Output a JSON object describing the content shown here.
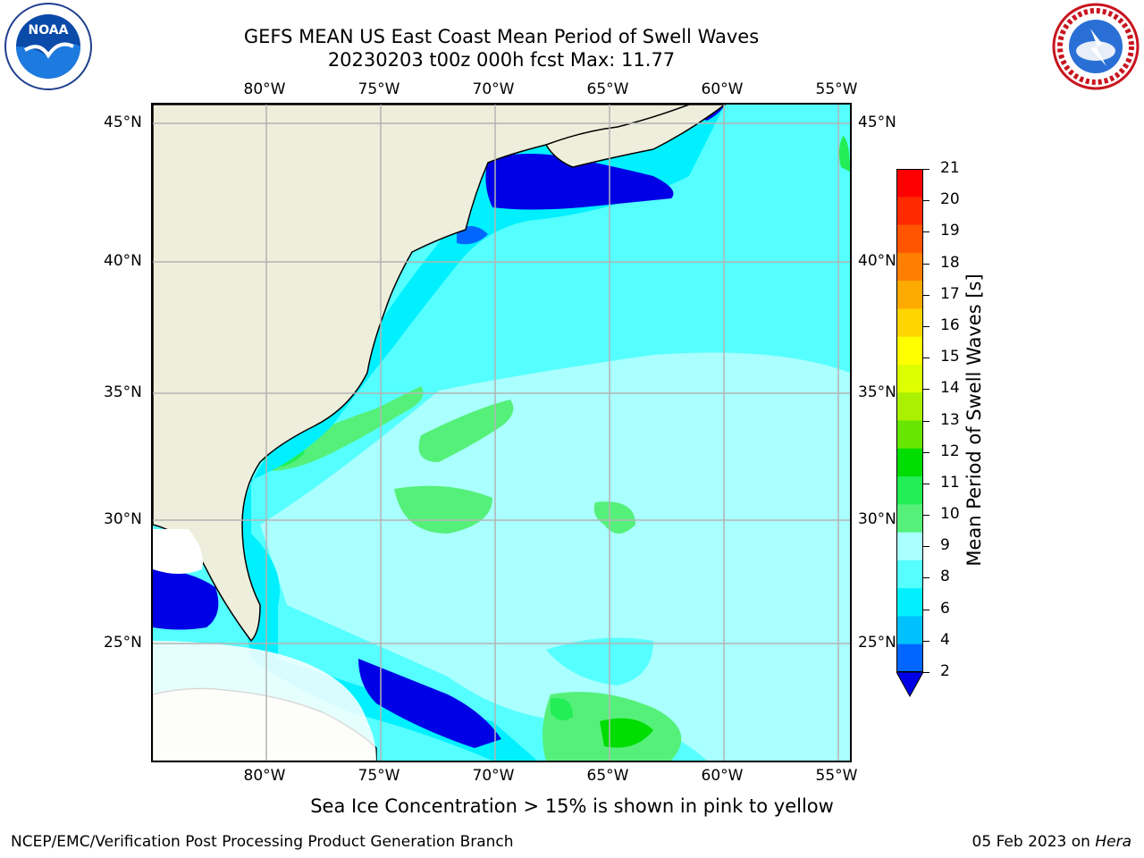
{
  "header": {
    "title_line1": "GEFS MEAN US East Coast Mean Period of Swell Waves",
    "title_line2": "20230203 t00z 000h fcst   Max: 11.77"
  },
  "logos": {
    "left": {
      "name": "NOAA",
      "icon": "noaa-logo"
    },
    "right": {
      "name": "NATIONAL WEATHER SERVICE",
      "icon": "nws-logo"
    }
  },
  "map": {
    "lon_labels_top": [
      "80°W",
      "75°W",
      "70°W",
      "65°W",
      "60°W",
      "55°W"
    ],
    "lon_labels_bottom": [
      "80°W",
      "75°W",
      "70°W",
      "65°W",
      "60°W",
      "55°W"
    ],
    "lat_labels_left": [
      "45°N",
      "40°N",
      "35°N",
      "30°N",
      "25°N"
    ],
    "lat_labels_right": [
      "45°N",
      "40°N",
      "35°N",
      "30°N",
      "25°N"
    ],
    "land_color": "#eeeedc",
    "ocean_base_color": "#8cf8f8"
  },
  "colorbar": {
    "title": "Mean Period of Swell Waves [s]",
    "labels": [
      "21",
      "20",
      "19",
      "18",
      "17",
      "16",
      "15",
      "14",
      "13",
      "12",
      "11",
      "10",
      "9",
      "8",
      "6",
      "4",
      "2"
    ],
    "colors_top_to_bottom": [
      "#ff0000",
      "#ff2a00",
      "#ff5500",
      "#ff7f00",
      "#ffaa00",
      "#ffd400",
      "#ffff00",
      "#ddff00",
      "#aaf000",
      "#66e600",
      "#00dd00",
      "#22ee55",
      "#55f07a",
      "#aaffff",
      "#55ffff",
      "#00f0ff",
      "#00c0ff",
      "#0066ff"
    ],
    "extend_below_color": "#0000e6"
  },
  "caption": "Sea Ice Concentration > 15% is shown in pink to yellow",
  "footer": {
    "left": "NCEP/EMC/Verification Post Processing Product Generation Branch",
    "right_prefix": "05 Feb 2023 on ",
    "right_host": "Hera"
  }
}
